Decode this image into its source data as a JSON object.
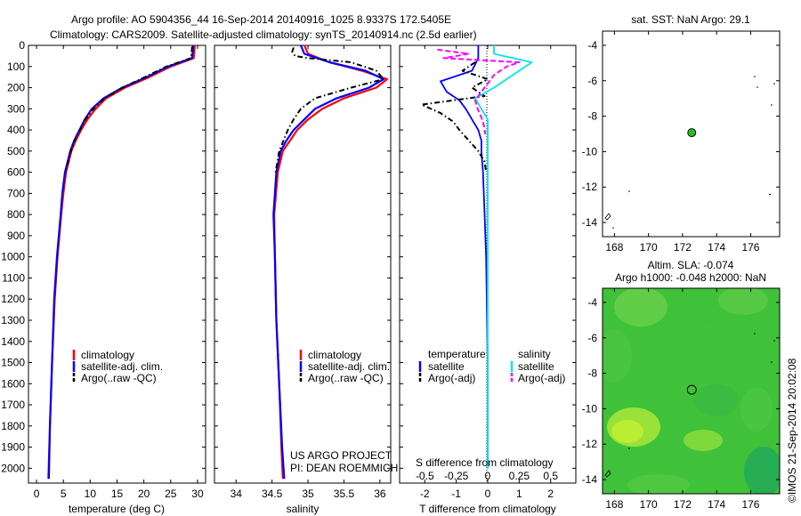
{
  "header": {
    "line1": "Argo profile: AO 5904356_44 16-Sep-2014 20140916_1025 8.9337S 172.5405E",
    "line2": "Climatology: CARS2009. Satellite-adjusted climatology: synTS_20140914.nc (2.5d earlier)"
  },
  "colors": {
    "climatology": "#ff0000",
    "satellite": "#0000ff",
    "argo": "#000000",
    "sal_satellite": "#00e5ee",
    "sal_argo": "#ff00ff"
  },
  "depth_axis": {
    "ylim": [
      0,
      2070
    ],
    "ticks": [
      0,
      100,
      200,
      300,
      400,
      500,
      600,
      700,
      800,
      900,
      1000,
      1100,
      1200,
      1300,
      1400,
      1500,
      1600,
      1700,
      1800,
      1900,
      2000
    ]
  },
  "chart_data": [
    {
      "id": "temperature",
      "type": "line",
      "xlabel": "temperature (deg C)",
      "xlim": [
        -1.5,
        31.5
      ],
      "xticks": [
        0,
        5,
        10,
        15,
        20,
        25,
        30
      ],
      "legend": [
        "climatology",
        "satellite-adj. clim.",
        "Argo(..raw -QC)"
      ],
      "series": [
        {
          "name": "climatology",
          "depth": [
            0,
            60,
            100,
            150,
            200,
            250,
            300,
            350,
            400,
            450,
            500,
            600,
            700,
            800,
            1000,
            1200,
            1500,
            1800,
            2050
          ],
          "values": [
            29.5,
            29.3,
            25,
            21,
            16.5,
            13,
            11,
            9.5,
            8.3,
            7.3,
            6.5,
            5.5,
            5.0,
            4.6,
            3.9,
            3.4,
            2.9,
            2.5,
            2.2
          ]
        },
        {
          "name": "satellite-adj. clim.",
          "depth": [
            0,
            60,
            100,
            150,
            200,
            250,
            300,
            350,
            400,
            450,
            500,
            600,
            700,
            800,
            1000,
            1200,
            1500,
            1800,
            2050
          ],
          "values": [
            29.2,
            29.0,
            24.5,
            20.5,
            16,
            12.5,
            10.3,
            9.0,
            8.0,
            7.0,
            6.3,
            5.3,
            4.8,
            4.5,
            3.8,
            3.3,
            2.9,
            2.5,
            2.3
          ]
        },
        {
          "name": "Argo(..raw -QC)",
          "depth": [
            5,
            60,
            100,
            150,
            200,
            250,
            300,
            350,
            400,
            450,
            500,
            600
          ],
          "values": [
            29.0,
            28.8,
            24.2,
            20.2,
            16,
            12.7,
            10.6,
            9.1,
            8.1,
            7.1,
            6.4,
            5.4
          ]
        }
      ]
    },
    {
      "id": "salinity",
      "type": "line",
      "xlabel": "salinity",
      "xlim": [
        33.7,
        36.15
      ],
      "xticks": [
        34,
        34.5,
        35,
        35.5,
        36
      ],
      "legend": [
        "climatology",
        "satellite-adj. clim.",
        "Argo(..raw -QC)"
      ],
      "annotation": [
        "US ARGO PROJECT",
        "PI: DEAN ROEMMICH"
      ],
      "series": [
        {
          "name": "climatology",
          "depth": [
            0,
            40,
            80,
            120,
            160,
            200,
            250,
            300,
            350,
            400,
            450,
            500,
            600,
            800,
            1000,
            1300,
            1600,
            1900,
            2050
          ],
          "values": [
            34.95,
            35.0,
            35.3,
            35.75,
            36.1,
            35.95,
            35.5,
            35.2,
            35.0,
            34.85,
            34.75,
            34.65,
            34.58,
            34.53,
            34.54,
            34.56,
            34.6,
            34.63,
            34.65
          ]
        },
        {
          "name": "satellite-adj. clim.",
          "depth": [
            0,
            40,
            80,
            120,
            160,
            200,
            250,
            300,
            350,
            400,
            450,
            500,
            600,
            800,
            1000,
            1300,
            1600,
            1900,
            2050
          ],
          "values": [
            34.9,
            34.95,
            35.3,
            35.8,
            36.05,
            35.85,
            35.4,
            35.1,
            34.95,
            34.8,
            34.7,
            34.62,
            34.56,
            34.52,
            34.54,
            34.56,
            34.6,
            34.64,
            34.67
          ]
        },
        {
          "name": "Argo(..raw -QC)",
          "depth": [
            10,
            30,
            50,
            60,
            80,
            120,
            160,
            200,
            250,
            300,
            350,
            400,
            450,
            500,
            600
          ],
          "values": [
            34.8,
            34.78,
            34.82,
            35.0,
            35.6,
            35.95,
            36.05,
            35.6,
            35.1,
            34.9,
            34.8,
            34.72,
            34.66,
            34.6,
            34.55
          ]
        }
      ]
    },
    {
      "id": "difference",
      "type": "line",
      "xlabel": "T difference from climatology",
      "xlabel_top": "S difference from climatology",
      "xlim": [
        -2.8,
        2.8
      ],
      "xticks": [
        -2,
        -1,
        0,
        1,
        2
      ],
      "sticks": [
        "-0.5",
        "-0.25",
        "0",
        "0.25",
        "0.5"
      ],
      "legend_titles": [
        "temperature",
        "salinity"
      ],
      "legend": [
        "satellite",
        "Argo(-adj)",
        "satellite",
        "Argo(-adj)"
      ],
      "series": [
        {
          "name": "T satellite",
          "depth": [
            0,
            60,
            120,
            170,
            220,
            260,
            300,
            350,
            400,
            450,
            500,
            600,
            800,
            1000,
            1500,
            2000
          ],
          "values": [
            -0.3,
            -0.3,
            -0.5,
            -1.5,
            -1.3,
            -0.9,
            -0.7,
            -0.5,
            -0.3,
            -0.2,
            -0.2,
            -0.15,
            -0.1,
            -0.05,
            0,
            0
          ]
        },
        {
          "name": "T Argo(-adj)",
          "depth": [
            80,
            120,
            160,
            200,
            240,
            280,
            320,
            360,
            400,
            450,
            500,
            550,
            600
          ],
          "values": [
            -0.4,
            -0.8,
            0,
            -0.5,
            -0.1,
            -2.1,
            -1.5,
            -1.1,
            -0.9,
            -0.6,
            -0.3,
            -0.1,
            -0.05
          ]
        },
        {
          "name": "S satellite",
          "depth": [
            0,
            40,
            80,
            120,
            160,
            200,
            250,
            300,
            350,
            400,
            450,
            500,
            600,
            800,
            1000,
            1500,
            2000
          ],
          "values": [
            0.05,
            0.05,
            0.35,
            0.25,
            0.15,
            0.05,
            -0.1,
            -0.05,
            0,
            0,
            0,
            0,
            0,
            0,
            0,
            0,
            0
          ]
        },
        {
          "name": "S Argo(-adj)",
          "depth": [
            20,
            40,
            60,
            80,
            100,
            140,
            180,
            220,
            260,
            300,
            340,
            380,
            420
          ],
          "values": [
            -0.4,
            -0.15,
            -0.35,
            0.25,
            0.15,
            0.05,
            0.0,
            -0.05,
            -0.1,
            -0.08,
            -0.05,
            -0.03,
            -0.02
          ]
        }
      ]
    }
  ],
  "sst_map": {
    "title": "sat. SST: NaN Argo: 29.1",
    "xticks": [
      "168",
      "170",
      "172",
      "174",
      "176"
    ],
    "yticks": [
      "-4",
      "-6",
      "-8",
      "-10",
      "-12",
      "-14"
    ],
    "xlim": [
      167.3,
      177.7
    ],
    "ylim": [
      -14.8,
      -3.2
    ],
    "argo_lon": 172.54,
    "argo_lat": -8.93
  },
  "sla_map": {
    "title_line1": "Altim. SLA: -0.074",
    "title_line2": "Argo h1000: -0.048 h2000: NaN",
    "xticks": [
      "168",
      "170",
      "172",
      "174",
      "176"
    ],
    "yticks": [
      "-4",
      "-6",
      "-8",
      "-10",
      "-12",
      "-14"
    ],
    "xlim": [
      167.3,
      177.7
    ],
    "ylim": [
      -14.8,
      -3.2
    ],
    "argo_lon": 172.54,
    "argo_lat": -8.93,
    "stamp": "©IMOS 21-Sep-2014 20:02:08"
  }
}
